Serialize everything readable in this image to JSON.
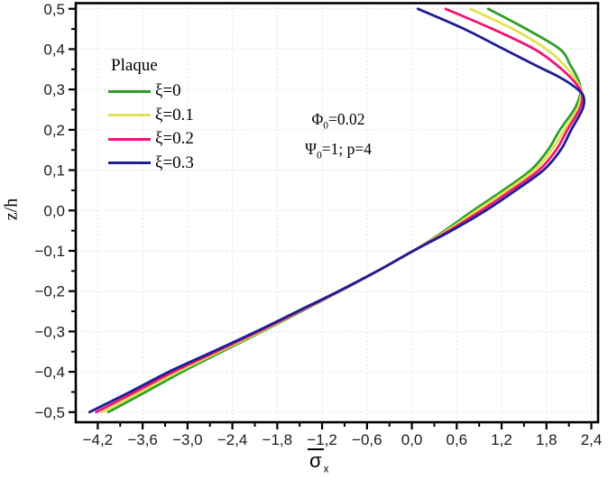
{
  "chart_data": {
    "type": "line",
    "title": "",
    "xlabel": {
      "base": "σ",
      "sub": "x"
    },
    "ylabel": "z/h",
    "x_axis": {
      "min": -4.494,
      "max": 2.49,
      "major_ticks": [
        -4.2,
        -3.6,
        -3.0,
        -2.4,
        -1.8,
        -1.2,
        -0.6,
        0.0,
        0.6,
        1.2,
        1.8,
        2.4
      ],
      "tick_labels": [
        "−4,2",
        "−3,6",
        "−3,0",
        "−2,4",
        "−1,8",
        "−1,2",
        "−0,6",
        "0,0",
        "0,6",
        "1,2",
        "1,8",
        "2,4"
      ],
      "minor_step": 0.3
    },
    "y_axis": {
      "min": -0.525,
      "max": 0.514,
      "major_ticks": [
        0.5,
        0.4,
        0.3,
        0.2,
        0.1,
        0.0,
        -0.1,
        -0.2,
        -0.3,
        -0.4,
        -0.5
      ],
      "tick_labels": [
        "0,5",
        "0,4",
        "0,3",
        "0,2",
        "0,1",
        "0,0",
        "−0,1",
        "−0,2",
        "−0,3",
        "−0,4",
        "−0,5"
      ],
      "minor_step": 0.05
    },
    "grid": {
      "show": true,
      "style": "dotted",
      "color": "#d7d7d7"
    },
    "legend": {
      "title": "Plaque",
      "position": "upper-left"
    },
    "annotations": [
      {
        "symbol": "Φ",
        "sub": "0",
        "rest": "=0.02"
      },
      {
        "symbol": "Ψ",
        "sub": "0",
        "rest": "=1; p=4"
      }
    ],
    "z": [
      -0.5,
      -0.45,
      -0.4,
      -0.35,
      -0.3,
      -0.25,
      -0.2,
      -0.15,
      -0.1,
      -0.05,
      0.0,
      0.05,
      0.1,
      0.15,
      0.2,
      0.25,
      0.28,
      0.3,
      0.33,
      0.36,
      0.4,
      0.45,
      0.5
    ],
    "series": [
      {
        "name": "ξ=0",
        "color": "#2f9e2c",
        "sigma": [
          -4.06,
          -3.56,
          -3.07,
          -2.54,
          -2.0,
          -1.48,
          -0.96,
          -0.46,
          0.02,
          0.44,
          0.82,
          1.22,
          1.59,
          1.82,
          1.98,
          2.17,
          2.24,
          2.26,
          2.21,
          2.12,
          1.98,
          1.53,
          1.02
        ]
      },
      {
        "name": "ξ=0.1",
        "color": "#e4e14f",
        "sigma": [
          -4.14,
          -3.63,
          -3.13,
          -2.58,
          -2.02,
          -1.5,
          -0.97,
          -0.46,
          0.02,
          0.47,
          0.87,
          1.27,
          1.64,
          1.87,
          2.04,
          2.21,
          2.26,
          2.26,
          2.17,
          2.04,
          1.8,
          1.35,
          0.78
        ]
      },
      {
        "name": "ξ=0.2",
        "color": "#ee1577",
        "sigma": [
          -4.22,
          -3.7,
          -3.19,
          -2.62,
          -2.05,
          -1.51,
          -0.97,
          -0.46,
          0.02,
          0.5,
          0.93,
          1.33,
          1.7,
          1.93,
          2.08,
          2.24,
          2.28,
          2.25,
          2.12,
          1.94,
          1.64,
          1.08,
          0.45
        ]
      },
      {
        "name": "ξ=0.3",
        "color": "#1d1d96",
        "sigma": [
          -4.31,
          -3.77,
          -3.25,
          -2.66,
          -2.08,
          -1.53,
          -0.98,
          -0.46,
          0.02,
          0.53,
          0.99,
          1.39,
          1.76,
          1.99,
          2.13,
          2.28,
          2.3,
          2.22,
          1.98,
          1.65,
          1.23,
          0.7,
          0.08
        ]
      }
    ],
    "frame_color": "#000000",
    "curve_width": 2.8
  }
}
